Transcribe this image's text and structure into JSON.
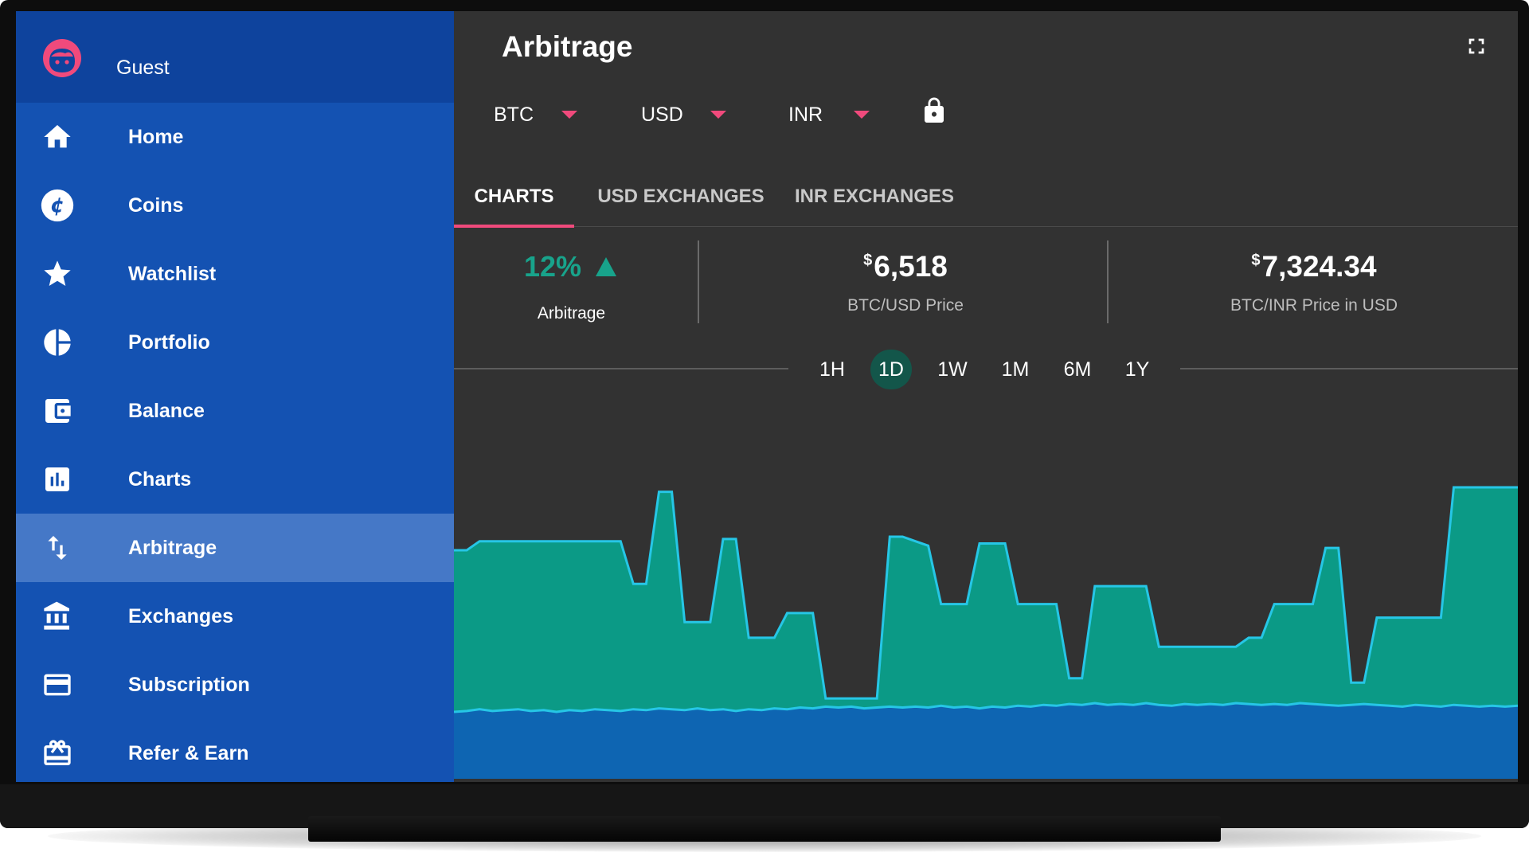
{
  "sidebar": {
    "user_name": "Guest",
    "items": [
      {
        "label": "Home",
        "icon": "home-icon"
      },
      {
        "label": "Coins",
        "icon": "coin-icon"
      },
      {
        "label": "Watchlist",
        "icon": "star-icon"
      },
      {
        "label": "Portfolio",
        "icon": "pie-chart-icon"
      },
      {
        "label": "Balance",
        "icon": "wallet-icon"
      },
      {
        "label": "Charts",
        "icon": "bar-chart-icon"
      },
      {
        "label": "Arbitrage",
        "icon": "swap-arrows-icon",
        "active": true
      },
      {
        "label": "Exchanges",
        "icon": "bank-icon"
      },
      {
        "label": "Subscription",
        "icon": "credit-card-icon"
      },
      {
        "label": "Refer & Earn",
        "icon": "gift-icon"
      }
    ]
  },
  "header": {
    "title": "Arbitrage",
    "selectors": [
      {
        "label": "BTC"
      },
      {
        "label": "USD"
      },
      {
        "label": "INR"
      }
    ]
  },
  "tabs": [
    {
      "label": "CHARTS",
      "active": true
    },
    {
      "label": "USD EXCHANGES",
      "active": false
    },
    {
      "label": "INR EXCHANGES",
      "active": false
    }
  ],
  "stats": {
    "arbitrage_pct": "12%",
    "arbitrage_label": "Arbitrage",
    "usd_price_symbol": "$",
    "usd_price": "6,518",
    "usd_price_label": "BTC/USD Price",
    "inr_price_symbol": "$",
    "inr_price": "7,324.34",
    "inr_price_label": "BTC/INR Price in USD"
  },
  "ranges": [
    {
      "label": "1H",
      "active": false
    },
    {
      "label": "1D",
      "active": true
    },
    {
      "label": "1W",
      "active": false
    },
    {
      "label": "1M",
      "active": false
    },
    {
      "label": "6M",
      "active": false
    },
    {
      "label": "1Y",
      "active": false
    }
  ],
  "colors": {
    "accent": "#f04a7c",
    "positive": "#18a38b",
    "sidebar": "#1452b2",
    "chart_upper_fill": "#0b9a86",
    "chart_lower_fill": "#0e65b2",
    "chart_line": "#26c6e6"
  },
  "chart_data": {
    "type": "area",
    "series": [
      {
        "values": [
          0.72,
          0.72,
          0.76,
          0.76,
          0.76,
          0.76,
          0.76,
          0.76,
          0.76,
          0.76,
          0.76,
          0.76,
          0.76,
          0.76,
          0.57,
          0.57,
          0.98,
          0.98,
          0.4,
          0.4,
          0.4,
          0.77,
          0.77,
          0.33,
          0.33,
          0.33,
          0.44,
          0.44,
          0.44,
          0.06,
          0.06,
          0.06,
          0.06,
          0.06,
          0.78,
          0.78,
          0.76,
          0.74,
          0.48,
          0.48,
          0.48,
          0.75,
          0.75,
          0.75,
          0.48,
          0.48,
          0.48,
          0.48,
          0.15,
          0.15,
          0.56,
          0.56,
          0.56,
          0.56,
          0.56,
          0.29,
          0.29,
          0.29,
          0.29,
          0.29,
          0.29,
          0.29,
          0.33,
          0.33,
          0.48,
          0.48,
          0.48,
          0.48,
          0.73,
          0.73,
          0.13,
          0.13,
          0.42,
          0.42,
          0.42,
          0.42,
          0.42,
          0.42,
          1.0,
          1.0,
          1.0,
          1.0,
          1.0,
          1.0
        ]
      },
      {
        "values": [
          0.0,
          0.01,
          0.03,
          0.01,
          0.02,
          0.03,
          0.01,
          0.02,
          0.0,
          0.02,
          0.01,
          0.03,
          0.02,
          0.01,
          0.03,
          0.02,
          0.04,
          0.03,
          0.02,
          0.04,
          0.02,
          0.03,
          0.01,
          0.03,
          0.02,
          0.04,
          0.03,
          0.05,
          0.04,
          0.06,
          0.05,
          0.06,
          0.04,
          0.05,
          0.06,
          0.05,
          0.06,
          0.05,
          0.07,
          0.05,
          0.06,
          0.04,
          0.06,
          0.05,
          0.07,
          0.06,
          0.08,
          0.07,
          0.09,
          0.08,
          0.1,
          0.08,
          0.09,
          0.08,
          0.1,
          0.08,
          0.07,
          0.09,
          0.08,
          0.09,
          0.08,
          0.1,
          0.09,
          0.08,
          0.09,
          0.08,
          0.1,
          0.09,
          0.08,
          0.07,
          0.08,
          0.09,
          0.08,
          0.07,
          0.06,
          0.08,
          0.07,
          0.06,
          0.08,
          0.07,
          0.06,
          0.07,
          0.06,
          0.07
        ]
      }
    ]
  }
}
